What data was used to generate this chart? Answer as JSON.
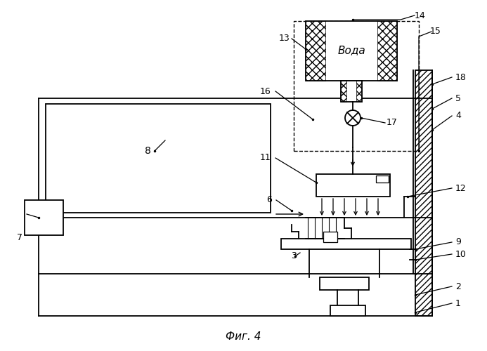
{
  "bg_color": "#ffffff",
  "line_color": "#000000",
  "fig_label": "Фиг. 4",
  "water_label": "Вода"
}
